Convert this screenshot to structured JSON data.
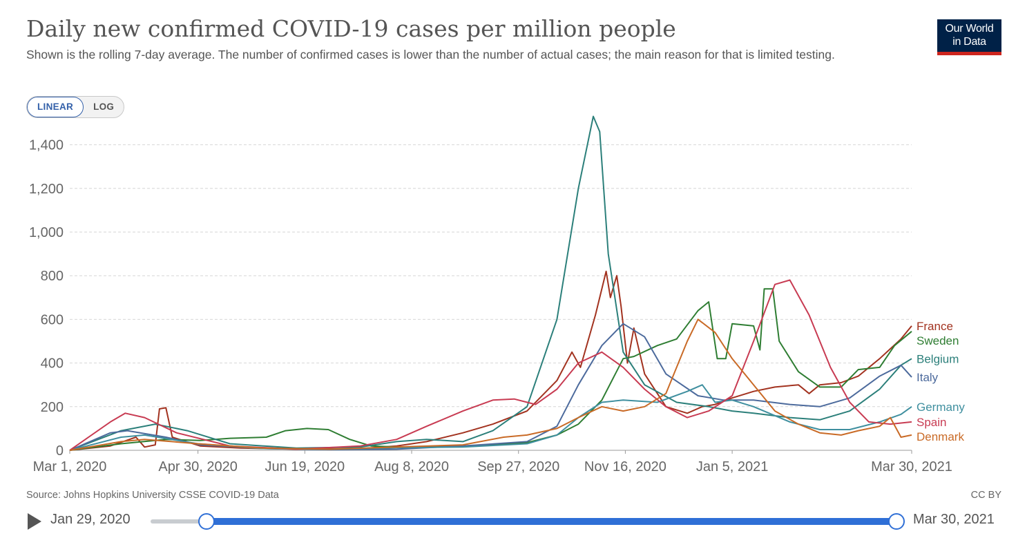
{
  "header": {
    "title": "Daily new confirmed COVID-19 cases per million people",
    "subtitle": "Shown is the rolling 7-day average. The number of confirmed cases is lower than the number of actual cases; the main reason for that is limited testing.",
    "logo_line1": "Our World",
    "logo_line2": "in Data"
  },
  "scale_toggle": {
    "linear": "LINEAR",
    "log": "LOG",
    "selected": "LINEAR"
  },
  "footer": {
    "source": "Source: Johns Hopkins University CSSE COVID-19 Data",
    "license": "CC BY"
  },
  "timeline": {
    "start_label": "Jan 29, 2020",
    "end_label": "Mar 30, 2021",
    "range_start": "2020-01-29",
    "range_end": "2021-03-30",
    "selected_start": "2020-03-01",
    "selected_end": "2021-03-30"
  },
  "colors": {
    "accent": "#3360a9",
    "slider": "#2f6fd6",
    "logo_bg": "#002147",
    "logo_bar": "#ce261e"
  },
  "chart_data": {
    "type": "line",
    "title": "Daily new confirmed COVID-19 cases per million people",
    "xlabel": "",
    "ylabel": "",
    "xlim": [
      "2020-03-01",
      "2021-03-30"
    ],
    "ylim": [
      0,
      1500
    ],
    "yticks": [
      0,
      200,
      400,
      600,
      800,
      1000,
      1200,
      1400
    ],
    "ytick_labels": [
      "0",
      "200",
      "400",
      "600",
      "800",
      "1,000",
      "1,200",
      "1,400"
    ],
    "xtick_labels": [
      "Mar 1, 2020",
      "Apr 30, 2020",
      "Jun 19, 2020",
      "Aug 8, 2020",
      "Sep 27, 2020",
      "Nov 16, 2020",
      "Jan 5, 2021",
      "Mar 30, 2021"
    ],
    "xtick_dates": [
      "2020-03-01",
      "2020-04-30",
      "2020-06-19",
      "2020-08-08",
      "2020-09-27",
      "2020-11-16",
      "2021-01-05",
      "2021-03-30"
    ],
    "grid": "horizontal dashed",
    "legend": "inline labels at line ends (right)",
    "series": [
      {
        "name": "France",
        "color": "#a2321f",
        "points": [
          [
            "2020-03-01",
            0
          ],
          [
            "2020-03-20",
            20
          ],
          [
            "2020-04-01",
            60
          ],
          [
            "2020-04-05",
            15
          ],
          [
            "2020-04-10",
            25
          ],
          [
            "2020-04-12",
            190
          ],
          [
            "2020-04-15",
            195
          ],
          [
            "2020-04-18",
            60
          ],
          [
            "2020-05-01",
            20
          ],
          [
            "2020-05-20",
            10
          ],
          [
            "2020-06-15",
            5
          ],
          [
            "2020-07-15",
            8
          ],
          [
            "2020-08-01",
            20
          ],
          [
            "2020-08-15",
            40
          ],
          [
            "2020-09-01",
            80
          ],
          [
            "2020-09-15",
            120
          ],
          [
            "2020-10-01",
            180
          ],
          [
            "2020-10-15",
            320
          ],
          [
            "2020-10-22",
            450
          ],
          [
            "2020-10-26",
            380
          ],
          [
            "2020-11-02",
            620
          ],
          [
            "2020-11-07",
            820
          ],
          [
            "2020-11-09",
            700
          ],
          [
            "2020-11-12",
            800
          ],
          [
            "2020-11-14",
            660
          ],
          [
            "2020-11-17",
            400
          ],
          [
            "2020-11-20",
            560
          ],
          [
            "2020-11-25",
            350
          ],
          [
            "2020-12-05",
            200
          ],
          [
            "2020-12-15",
            170
          ],
          [
            "2020-12-22",
            200
          ],
          [
            "2020-12-28",
            210
          ],
          [
            "2021-01-05",
            240
          ],
          [
            "2021-01-15",
            270
          ],
          [
            "2021-01-25",
            290
          ],
          [
            "2021-02-05",
            300
          ],
          [
            "2021-02-10",
            260
          ],
          [
            "2021-02-15",
            300
          ],
          [
            "2021-02-25",
            310
          ],
          [
            "2021-03-05",
            340
          ],
          [
            "2021-03-15",
            420
          ],
          [
            "2021-03-25",
            510
          ],
          [
            "2021-03-30",
            570
          ]
        ]
      },
      {
        "name": "Sweden",
        "color": "#2e7d32",
        "points": [
          [
            "2020-03-01",
            0
          ],
          [
            "2020-03-25",
            30
          ],
          [
            "2020-04-15",
            50
          ],
          [
            "2020-05-01",
            45
          ],
          [
            "2020-05-15",
            55
          ],
          [
            "2020-06-01",
            60
          ],
          [
            "2020-06-10",
            90
          ],
          [
            "2020-06-20",
            100
          ],
          [
            "2020-06-30",
            95
          ],
          [
            "2020-07-10",
            50
          ],
          [
            "2020-07-20",
            20
          ],
          [
            "2020-08-01",
            15
          ],
          [
            "2020-09-01",
            20
          ],
          [
            "2020-10-01",
            35
          ],
          [
            "2020-10-15",
            70
          ],
          [
            "2020-10-25",
            120
          ],
          [
            "2020-11-05",
            230
          ],
          [
            "2020-11-15",
            420
          ],
          [
            "2020-11-20",
            430
          ],
          [
            "2020-12-01",
            480
          ],
          [
            "2020-12-10",
            510
          ],
          [
            "2020-12-20",
            640
          ],
          [
            "2020-12-25",
            680
          ],
          [
            "2020-12-29",
            420
          ],
          [
            "2021-01-02",
            420
          ],
          [
            "2021-01-05",
            580
          ],
          [
            "2021-01-15",
            570
          ],
          [
            "2021-01-18",
            460
          ],
          [
            "2021-01-20",
            740
          ],
          [
            "2021-01-24",
            740
          ],
          [
            "2021-01-27",
            500
          ],
          [
            "2021-02-05",
            360
          ],
          [
            "2021-02-15",
            290
          ],
          [
            "2021-02-25",
            290
          ],
          [
            "2021-03-05",
            370
          ],
          [
            "2021-03-15",
            380
          ],
          [
            "2021-03-22",
            480
          ],
          [
            "2021-03-30",
            545
          ]
        ]
      },
      {
        "name": "Belgium",
        "color": "#2b7f7a",
        "points": [
          [
            "2020-03-01",
            0
          ],
          [
            "2020-03-25",
            90
          ],
          [
            "2020-04-10",
            120
          ],
          [
            "2020-04-25",
            90
          ],
          [
            "2020-05-15",
            30
          ],
          [
            "2020-06-15",
            10
          ],
          [
            "2020-07-15",
            15
          ],
          [
            "2020-08-01",
            40
          ],
          [
            "2020-08-15",
            50
          ],
          [
            "2020-09-01",
            40
          ],
          [
            "2020-09-15",
            90
          ],
          [
            "2020-10-01",
            200
          ],
          [
            "2020-10-15",
            600
          ],
          [
            "2020-10-25",
            1200
          ],
          [
            "2020-11-01",
            1530
          ],
          [
            "2020-11-04",
            1460
          ],
          [
            "2020-11-08",
            900
          ],
          [
            "2020-11-15",
            450
          ],
          [
            "2020-11-25",
            300
          ],
          [
            "2020-12-10",
            220
          ],
          [
            "2020-12-25",
            200
          ],
          [
            "2021-01-05",
            180
          ],
          [
            "2021-01-15",
            170
          ],
          [
            "2021-02-01",
            150
          ],
          [
            "2021-02-15",
            140
          ],
          [
            "2021-03-01",
            180
          ],
          [
            "2021-03-15",
            280
          ],
          [
            "2021-03-25",
            390
          ],
          [
            "2021-03-30",
            420
          ]
        ]
      },
      {
        "name": "Italy",
        "color": "#4c6a9c",
        "points": [
          [
            "2020-03-01",
            0
          ],
          [
            "2020-03-20",
            80
          ],
          [
            "2020-03-28",
            90
          ],
          [
            "2020-04-15",
            60
          ],
          [
            "2020-05-01",
            25
          ],
          [
            "2020-06-01",
            8
          ],
          [
            "2020-07-01",
            3
          ],
          [
            "2020-08-01",
            5
          ],
          [
            "2020-09-01",
            20
          ],
          [
            "2020-10-01",
            40
          ],
          [
            "2020-10-15",
            110
          ],
          [
            "2020-10-25",
            300
          ],
          [
            "2020-11-05",
            480
          ],
          [
            "2020-11-15",
            580
          ],
          [
            "2020-11-25",
            520
          ],
          [
            "2020-12-05",
            350
          ],
          [
            "2020-12-20",
            250
          ],
          [
            "2021-01-01",
            230
          ],
          [
            "2021-01-15",
            230
          ],
          [
            "2021-02-01",
            210
          ],
          [
            "2021-02-15",
            200
          ],
          [
            "2021-03-01",
            240
          ],
          [
            "2021-03-15",
            340
          ],
          [
            "2021-03-25",
            390
          ],
          [
            "2021-03-30",
            335
          ]
        ]
      },
      {
        "name": "Germany",
        "color": "#3f8f9f",
        "points": [
          [
            "2020-03-01",
            0
          ],
          [
            "2020-03-25",
            60
          ],
          [
            "2020-04-05",
            70
          ],
          [
            "2020-04-30",
            30
          ],
          [
            "2020-05-30",
            8
          ],
          [
            "2020-07-01",
            5
          ],
          [
            "2020-08-01",
            12
          ],
          [
            "2020-09-01",
            15
          ],
          [
            "2020-10-01",
            30
          ],
          [
            "2020-10-15",
            70
          ],
          [
            "2020-10-25",
            150
          ],
          [
            "2020-11-05",
            220
          ],
          [
            "2020-11-15",
            230
          ],
          [
            "2020-12-01",
            220
          ],
          [
            "2020-12-15",
            270
          ],
          [
            "2020-12-22",
            300
          ],
          [
            "2020-12-28",
            220
          ],
          [
            "2021-01-05",
            230
          ],
          [
            "2021-01-15",
            200
          ],
          [
            "2021-02-01",
            130
          ],
          [
            "2021-02-15",
            95
          ],
          [
            "2021-03-01",
            95
          ],
          [
            "2021-03-15",
            130
          ],
          [
            "2021-03-25",
            165
          ],
          [
            "2021-03-30",
            200
          ]
        ]
      },
      {
        "name": "Spain",
        "color": "#c83b52",
        "points": [
          [
            "2020-03-01",
            0
          ],
          [
            "2020-03-20",
            130
          ],
          [
            "2020-03-27",
            170
          ],
          [
            "2020-04-05",
            150
          ],
          [
            "2020-04-20",
            80
          ],
          [
            "2020-05-15",
            20
          ],
          [
            "2020-06-15",
            5
          ],
          [
            "2020-07-15",
            20
          ],
          [
            "2020-08-01",
            50
          ],
          [
            "2020-08-15",
            110
          ],
          [
            "2020-09-01",
            180
          ],
          [
            "2020-09-15",
            230
          ],
          [
            "2020-09-25",
            235
          ],
          [
            "2020-10-05",
            210
          ],
          [
            "2020-10-15",
            280
          ],
          [
            "2020-10-25",
            400
          ],
          [
            "2020-11-05",
            450
          ],
          [
            "2020-11-15",
            380
          ],
          [
            "2020-11-25",
            280
          ],
          [
            "2020-12-05",
            200
          ],
          [
            "2020-12-15",
            150
          ],
          [
            "2020-12-25",
            180
          ],
          [
            "2021-01-05",
            250
          ],
          [
            "2021-01-15",
            500
          ],
          [
            "2021-01-25",
            760
          ],
          [
            "2021-02-01",
            780
          ],
          [
            "2021-02-10",
            620
          ],
          [
            "2021-02-20",
            380
          ],
          [
            "2021-03-01",
            220
          ],
          [
            "2021-03-10",
            130
          ],
          [
            "2021-03-20",
            120
          ],
          [
            "2021-03-30",
            130
          ]
        ]
      },
      {
        "name": "Denmark",
        "color": "#c96a26",
        "points": [
          [
            "2020-03-01",
            0
          ],
          [
            "2020-03-25",
            40
          ],
          [
            "2020-04-05",
            50
          ],
          [
            "2020-04-30",
            30
          ],
          [
            "2020-05-30",
            10
          ],
          [
            "2020-07-01",
            5
          ],
          [
            "2020-08-01",
            15
          ],
          [
            "2020-09-01",
            25
          ],
          [
            "2020-09-20",
            60
          ],
          [
            "2020-10-01",
            70
          ],
          [
            "2020-10-15",
            100
          ],
          [
            "2020-10-25",
            150
          ],
          [
            "2020-11-05",
            200
          ],
          [
            "2020-11-15",
            180
          ],
          [
            "2020-11-25",
            200
          ],
          [
            "2020-12-05",
            260
          ],
          [
            "2020-12-15",
            500
          ],
          [
            "2020-12-20",
            600
          ],
          [
            "2020-12-28",
            540
          ],
          [
            "2021-01-05",
            420
          ],
          [
            "2021-01-15",
            300
          ],
          [
            "2021-01-25",
            180
          ],
          [
            "2021-02-05",
            120
          ],
          [
            "2021-02-15",
            80
          ],
          [
            "2021-02-25",
            70
          ],
          [
            "2021-03-05",
            90
          ],
          [
            "2021-03-15",
            110
          ],
          [
            "2021-03-20",
            150
          ],
          [
            "2021-03-25",
            60
          ],
          [
            "2021-03-30",
            70
          ]
        ]
      }
    ],
    "end_labels": {
      "France": 570,
      "Sweden": 545,
      "Belgium": 420,
      "Italy": 335,
      "Germany": 200,
      "Spain": 130,
      "Denmark": 70
    }
  }
}
